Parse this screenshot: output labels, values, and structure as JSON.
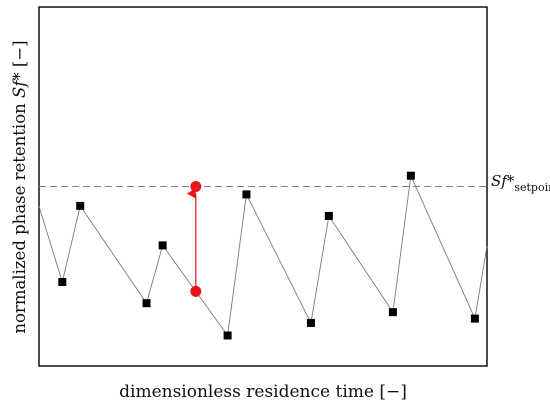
{
  "chart_data": {
    "type": "line",
    "xlabel": "dimensionless residence time [−]",
    "ylabel_prefix": "normalized phase retention ",
    "ylabel_symbol": "Sf*",
    "ylabel_suffix": " [−]",
    "xlim": [
      0,
      1
    ],
    "ylim": [
      0,
      1
    ],
    "grid": false,
    "legend": "none",
    "setpoint": {
      "y": 0.5,
      "label_main": "Sf*",
      "label_sub": "setpoint",
      "style": "dashed",
      "color": "#808080"
    },
    "series": [
      {
        "line_color": "#7a7a7a",
        "marker": "square",
        "marker_color": "#000000",
        "points": [
          {
            "x": 0.0,
            "y": 0.445,
            "marker": false
          },
          {
            "x": 0.052,
            "y": 0.234,
            "marker": true
          },
          {
            "x": 0.092,
            "y": 0.446,
            "marker": true
          },
          {
            "x": 0.24,
            "y": 0.175,
            "marker": true
          },
          {
            "x": 0.276,
            "y": 0.336,
            "marker": true
          },
          {
            "x": 0.421,
            "y": 0.085,
            "marker": true
          },
          {
            "x": 0.463,
            "y": 0.478,
            "marker": true
          },
          {
            "x": 0.607,
            "y": 0.12,
            "marker": true
          },
          {
            "x": 0.647,
            "y": 0.418,
            "marker": true
          },
          {
            "x": 0.79,
            "y": 0.15,
            "marker": true
          },
          {
            "x": 0.83,
            "y": 0.53,
            "marker": true
          },
          {
            "x": 0.973,
            "y": 0.132,
            "marker": true
          },
          {
            "x": 1.0,
            "y": 0.334,
            "marker": false
          }
        ]
      }
    ],
    "annotation": {
      "type": "arrow",
      "color": "#e8161a",
      "x": 0.35,
      "y_from": 0.208,
      "y_to": 0.5
    }
  }
}
